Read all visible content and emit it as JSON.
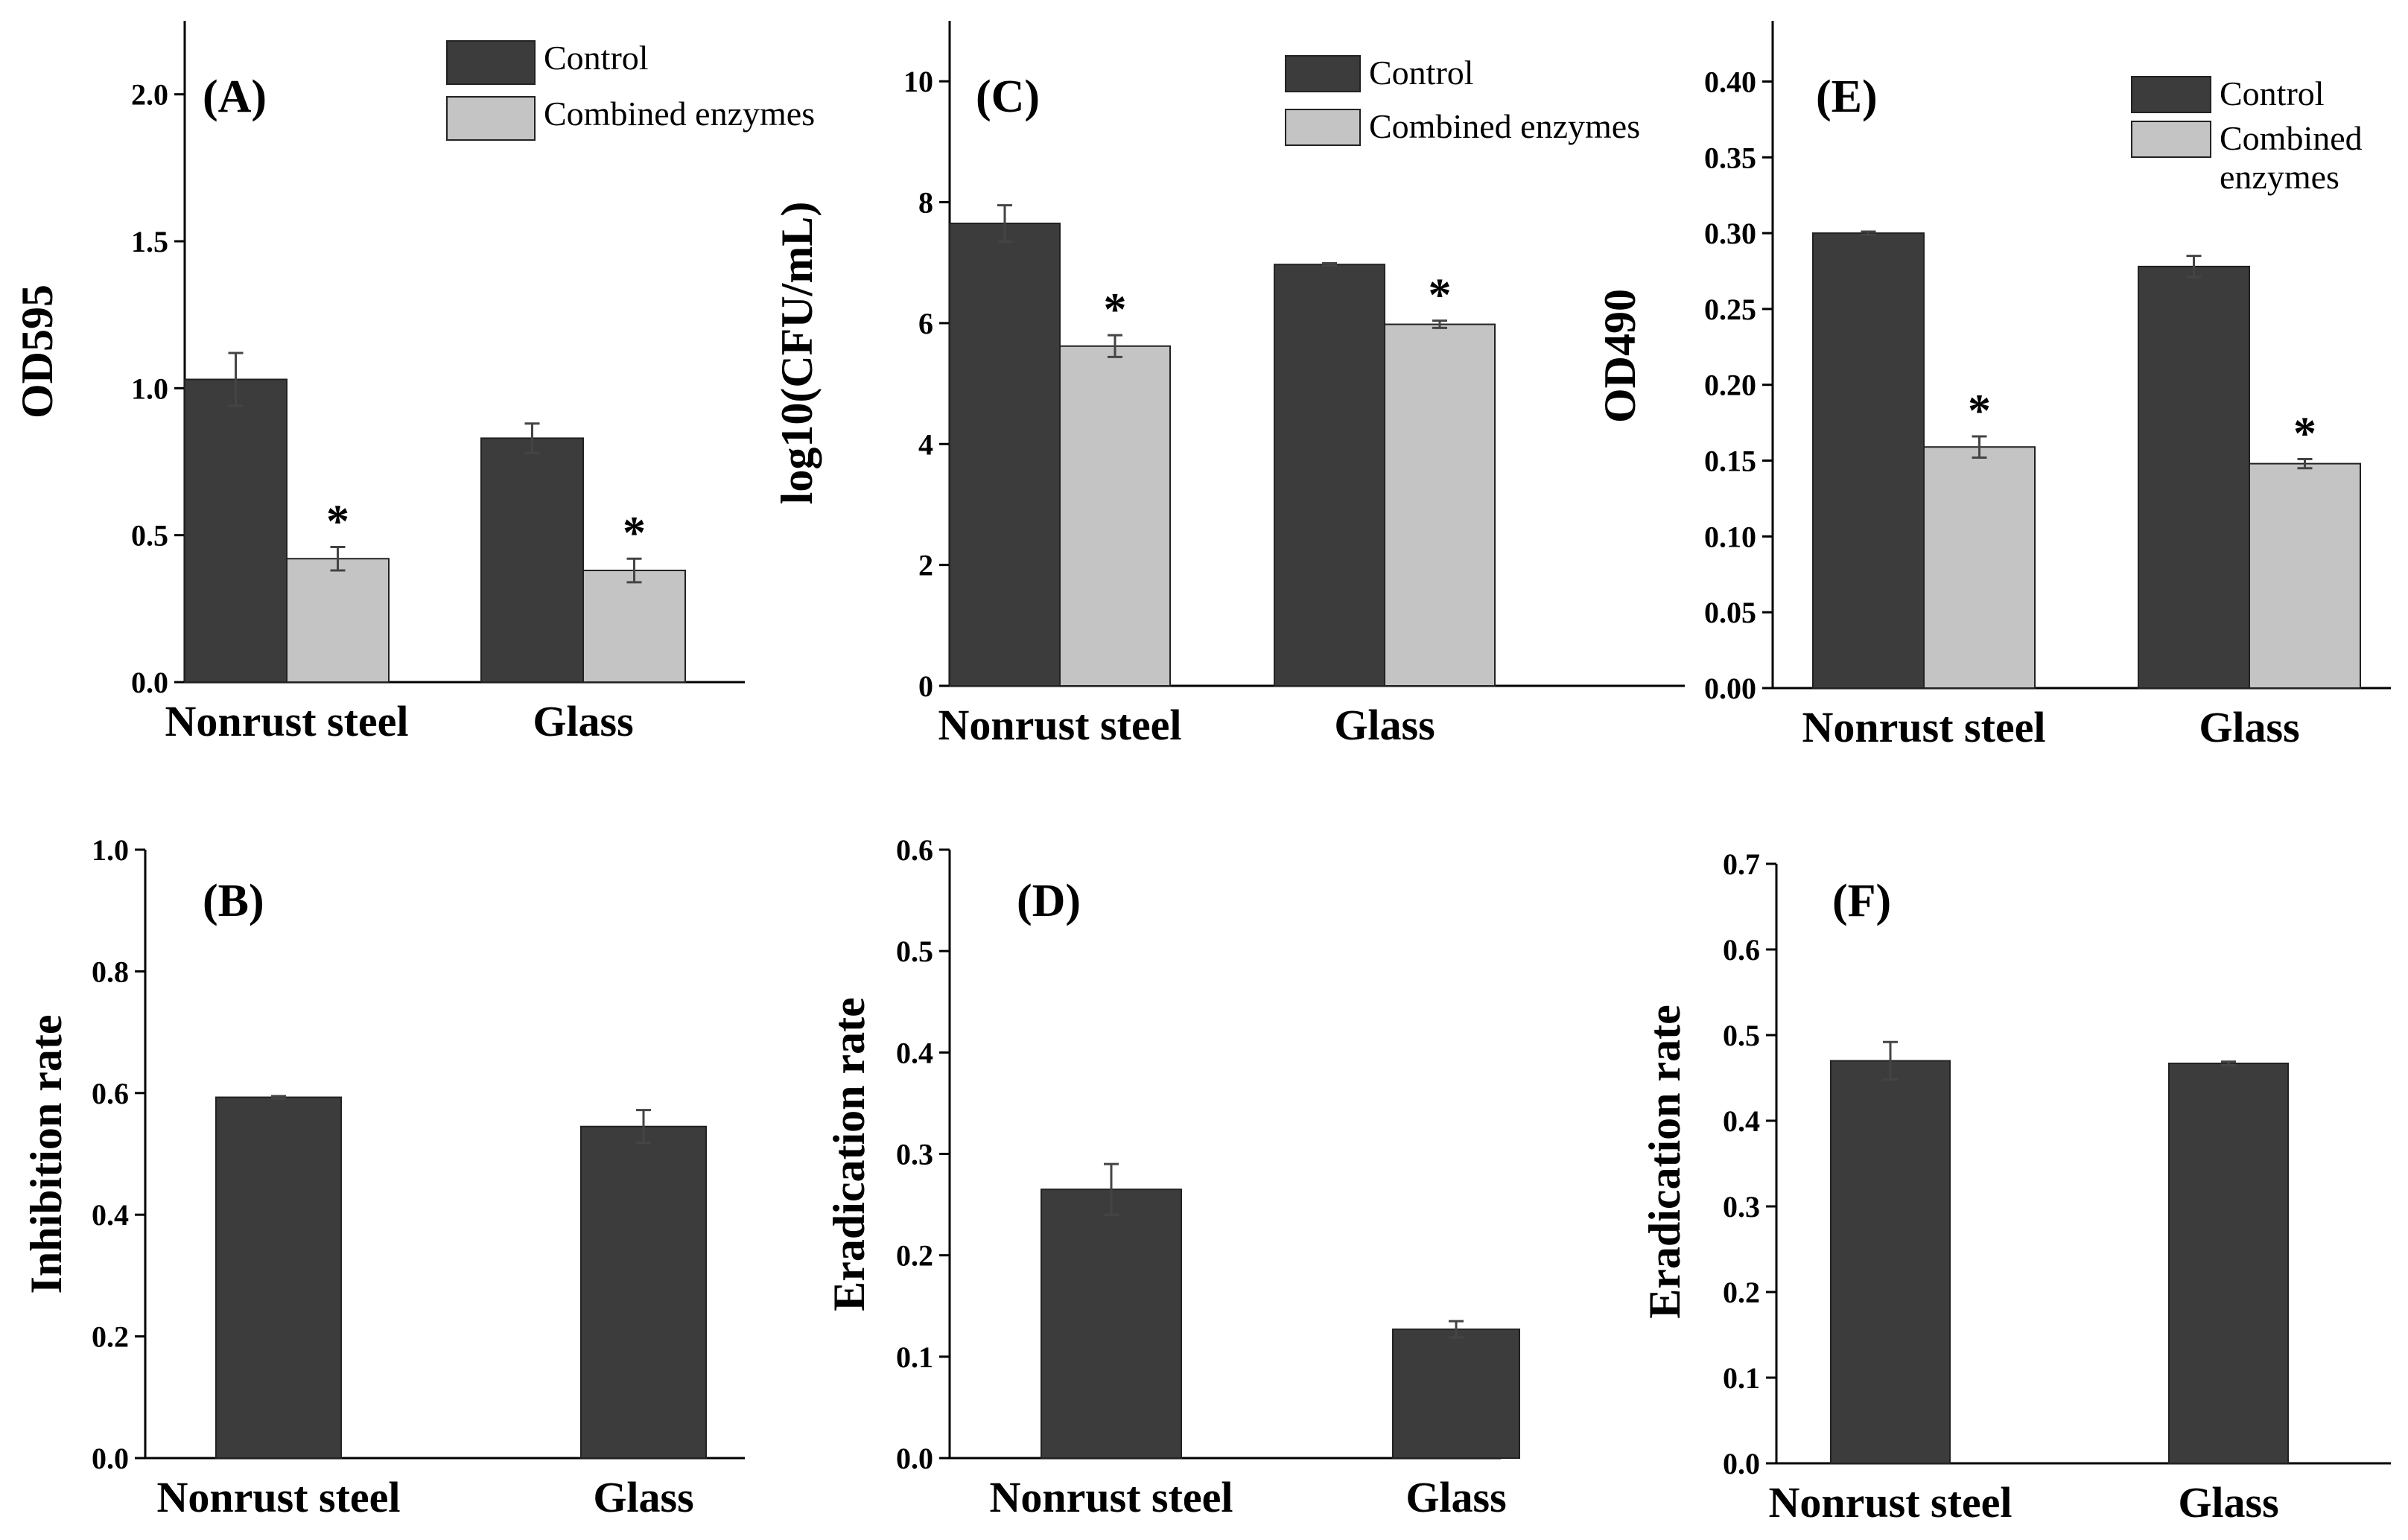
{
  "chart_data": [
    {
      "panel": "(A)",
      "type": "bar",
      "ylabel": "OD595",
      "categories": [
        "Nonrust steel",
        "Glass"
      ],
      "ylim": [
        0,
        2.25
      ],
      "yticks": [
        0.0,
        0.5,
        1.0,
        1.5,
        2.0
      ],
      "tick_decimals": 1,
      "legend_position": "top-right",
      "series": [
        {
          "name": "Control",
          "color": "#3c3c3c",
          "values": [
            1.03,
            0.83
          ],
          "errors": [
            0.09,
            0.05
          ],
          "sig": [
            "",
            ""
          ]
        },
        {
          "name": "Combined enzymes",
          "color": "#c4c4c4",
          "values": [
            0.42,
            0.38
          ],
          "errors": [
            0.04,
            0.04
          ],
          "sig": [
            "*",
            "*"
          ]
        }
      ]
    },
    {
      "panel": "(C)",
      "type": "bar",
      "ylabel": "log10(CFU/mL)",
      "categories": [
        "Nonrust steel",
        "Glass"
      ],
      "ylim": [
        0,
        11
      ],
      "yticks": [
        0,
        2,
        4,
        6,
        8,
        10
      ],
      "tick_decimals": 0,
      "legend_position": "top-right",
      "series": [
        {
          "name": "Control",
          "color": "#3c3c3c",
          "values": [
            7.65,
            6.97
          ],
          "errors": [
            0.3,
            0.02
          ],
          "sig": [
            "",
            ""
          ]
        },
        {
          "name": "Combined enzymes",
          "color": "#c4c4c4",
          "values": [
            5.62,
            5.98
          ],
          "errors": [
            0.18,
            0.06
          ],
          "sig": [
            "*",
            "*"
          ]
        }
      ]
    },
    {
      "panel": "(E)",
      "type": "bar",
      "ylabel": "OD490",
      "categories": [
        "Nonrust steel",
        "Glass"
      ],
      "ylim": [
        0,
        0.44
      ],
      "yticks": [
        0.0,
        0.05,
        0.1,
        0.15,
        0.2,
        0.25,
        0.3,
        0.35,
        0.4
      ],
      "tick_decimals": 2,
      "legend_position": "top-right",
      "series": [
        {
          "name": "Control",
          "color": "#3c3c3c",
          "values": [
            0.3,
            0.278
          ],
          "errors": [
            0.001,
            0.007
          ],
          "sig": [
            "",
            ""
          ]
        },
        {
          "name": "Combined enzymes",
          "color": "#c4c4c4",
          "values": [
            0.159,
            0.148
          ],
          "errors": [
            0.007,
            0.003
          ],
          "sig": [
            "*",
            "*"
          ]
        }
      ]
    },
    {
      "panel": "(B)",
      "type": "bar",
      "ylabel": "Inhibition rate",
      "categories": [
        "Nonrust steel",
        "Glass"
      ],
      "ylim": [
        0,
        1.0
      ],
      "yticks": [
        0.0,
        0.2,
        0.4,
        0.6,
        0.8,
        1.0
      ],
      "tick_decimals": 1,
      "series": [
        {
          "name": "",
          "color": "#3c3c3c",
          "values": [
            0.593,
            0.545
          ],
          "errors": [
            0.002,
            0.027
          ],
          "sig": [
            "",
            ""
          ]
        }
      ]
    },
    {
      "panel": "(D)",
      "type": "bar",
      "ylabel": "Eradication rate",
      "categories": [
        "Nonrust steel",
        "Glass"
      ],
      "ylim": [
        0,
        0.6
      ],
      "yticks": [
        0.0,
        0.1,
        0.2,
        0.3,
        0.4,
        0.5,
        0.6
      ],
      "tick_decimals": 1,
      "series": [
        {
          "name": "",
          "color": "#3c3c3c",
          "values": [
            0.265,
            0.127
          ],
          "errors": [
            0.025,
            0.008
          ],
          "sig": [
            "",
            ""
          ]
        }
      ]
    },
    {
      "panel": "(F)",
      "type": "bar",
      "ylabel": "Eradication rate",
      "categories": [
        "Nonrust steel",
        "Glass"
      ],
      "ylim": [
        0,
        0.7
      ],
      "yticks": [
        0.0,
        0.1,
        0.2,
        0.3,
        0.4,
        0.5,
        0.6,
        0.7
      ],
      "tick_decimals": 1,
      "series": [
        {
          "name": "",
          "color": "#3c3c3c",
          "values": [
            0.47,
            0.467
          ],
          "errors": [
            0.022,
            0.002
          ],
          "sig": [
            "",
            ""
          ]
        }
      ]
    }
  ]
}
